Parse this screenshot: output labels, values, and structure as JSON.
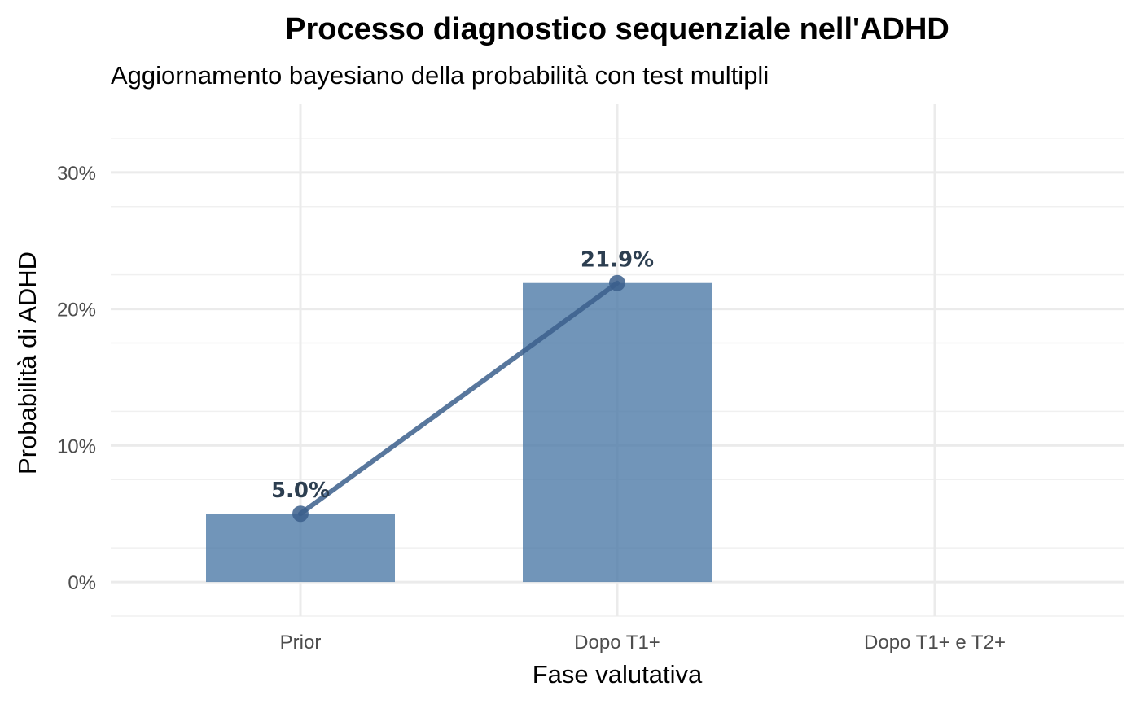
{
  "chart_data": {
    "type": "bar",
    "title": "Processo diagnostico sequenziale nell'ADHD",
    "subtitle": "Aggiornamento bayesiano della probabilità con test multipli",
    "xlabel": "Fase valutativa",
    "ylabel": "Probabilità di ADHD",
    "categories": [
      "Prior",
      "Dopo T1+",
      "Dopo T1+ e T2+"
    ],
    "values": [
      5.0,
      21.9,
      null
    ],
    "data_labels": [
      "5.0%",
      "21.9%",
      ""
    ],
    "ylim": [
      -2.5,
      35
    ],
    "yticks": [
      0,
      10,
      20,
      30
    ],
    "ytick_labels": [
      "0%",
      "10%",
      "20%",
      "30%"
    ],
    "grid": true,
    "legend": "none",
    "overlay": "line with points connecting bar tops",
    "colors": {
      "bar": "#4e7aa7",
      "line": "#3b5f8c",
      "point": "#3b5f8c",
      "label": "#2c3e50",
      "grid": "#ebebeb"
    }
  }
}
